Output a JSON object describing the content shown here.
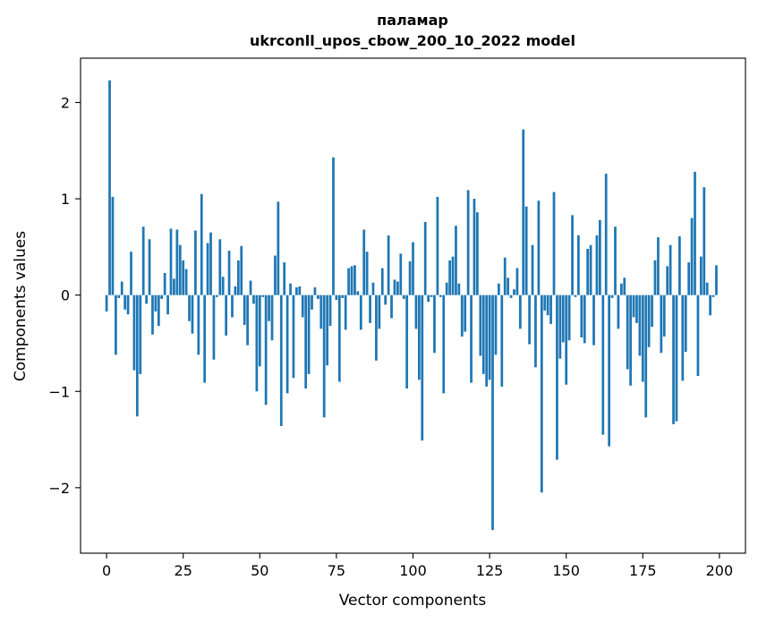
{
  "chart_data": {
    "type": "bar",
    "title": "паламар",
    "subtitle": "ukrconll_upos_cbow_200_10_2022 model",
    "xlabel": "Vector components",
    "ylabel": "Components values",
    "xlim": [
      -8.5,
      208.5
    ],
    "ylim": [
      -2.68,
      2.46
    ],
    "xticks": [
      0,
      25,
      50,
      75,
      100,
      125,
      150,
      175,
      200
    ],
    "yticks": [
      2,
      1,
      0,
      -1,
      -2
    ],
    "ytick_labels": [
      "2",
      "1",
      "0",
      "−1",
      "−2"
    ],
    "grid": false,
    "legend": "none",
    "bar_color": "#1f77b4",
    "x": [
      0,
      1,
      2,
      3,
      4,
      5,
      6,
      7,
      8,
      9,
      10,
      11,
      12,
      13,
      14,
      15,
      16,
      17,
      18,
      19,
      20,
      21,
      22,
      23,
      24,
      25,
      26,
      27,
      28,
      29,
      30,
      31,
      32,
      33,
      34,
      35,
      36,
      37,
      38,
      39,
      40,
      41,
      42,
      43,
      44,
      45,
      46,
      47,
      48,
      49,
      50,
      51,
      52,
      53,
      54,
      55,
      56,
      57,
      58,
      59,
      60,
      61,
      62,
      63,
      64,
      65,
      66,
      67,
      68,
      69,
      70,
      71,
      72,
      73,
      74,
      75,
      76,
      77,
      78,
      79,
      80,
      81,
      82,
      83,
      84,
      85,
      86,
      87,
      88,
      89,
      90,
      91,
      92,
      93,
      94,
      95,
      96,
      97,
      98,
      99,
      100,
      101,
      102,
      103,
      104,
      105,
      106,
      107,
      108,
      109,
      110,
      111,
      112,
      113,
      114,
      115,
      116,
      117,
      118,
      119,
      120,
      121,
      122,
      123,
      124,
      125,
      126,
      127,
      128,
      129,
      130,
      131,
      132,
      133,
      134,
      135,
      136,
      137,
      138,
      139,
      140,
      141,
      142,
      143,
      144,
      145,
      146,
      147,
      148,
      149,
      150,
      151,
      152,
      153,
      154,
      155,
      156,
      157,
      158,
      159,
      160,
      161,
      162,
      163,
      164,
      165,
      166,
      167,
      168,
      169,
      170,
      171,
      172,
      173,
      174,
      175,
      176,
      177,
      178,
      179,
      180,
      181,
      182,
      183,
      184,
      185,
      186,
      187,
      188,
      189,
      190,
      191,
      192,
      193,
      194,
      195,
      196,
      197,
      198,
      199
    ],
    "values": [
      -0.17,
      2.23,
      1.02,
      -0.62,
      -0.03,
      0.14,
      -0.15,
      -0.2,
      0.45,
      -0.78,
      -1.26,
      -0.82,
      0.71,
      -0.09,
      0.58,
      -0.41,
      -0.17,
      -0.32,
      -0.04,
      0.23,
      -0.2,
      0.69,
      0.17,
      0.68,
      0.52,
      0.36,
      0.27,
      -0.27,
      -0.4,
      0.67,
      -0.62,
      1.05,
      -0.91,
      0.54,
      0.65,
      -0.67,
      -0.02,
      0.58,
      0.19,
      -0.42,
      0.46,
      -0.23,
      0.09,
      0.36,
      0.51,
      -0.31,
      -0.52,
      0.15,
      -0.09,
      -1.0,
      -0.74,
      -0.02,
      -1.14,
      -0.27,
      -0.47,
      0.41,
      0.97,
      -1.36,
      0.34,
      -1.02,
      0.12,
      -0.86,
      0.08,
      0.09,
      -0.23,
      -0.97,
      -0.82,
      -0.15,
      0.08,
      -0.04,
      -0.35,
      -1.27,
      -0.73,
      -0.32,
      1.43,
      -0.05,
      -0.9,
      -0.03,
      -0.36,
      0.28,
      0.3,
      0.31,
      0.04,
      -0.36,
      0.68,
      0.45,
      -0.29,
      0.13,
      -0.68,
      -0.35,
      0.28,
      -0.1,
      0.62,
      -0.24,
      0.16,
      0.14,
      0.43,
      -0.04,
      -0.97,
      0.35,
      0.55,
      -0.35,
      -0.88,
      -1.51,
      0.76,
      -0.07,
      -0.02,
      -0.6,
      1.02,
      -0.02,
      -1.02,
      0.13,
      0.36,
      0.4,
      0.72,
      0.12,
      -0.43,
      -0.38,
      1.09,
      -0.91,
      1.0,
      0.86,
      -0.63,
      -0.82,
      -0.95,
      -0.88,
      -2.44,
      -0.62,
      0.12,
      -0.95,
      0.39,
      0.18,
      -0.03,
      0.06,
      0.28,
      -0.35,
      1.72,
      0.92,
      -0.51,
      0.52,
      -0.75,
      0.98,
      -2.05,
      -0.16,
      -0.21,
      -0.3,
      1.07,
      -1.71,
      -0.66,
      -0.49,
      -0.93,
      -0.47,
      0.83,
      -0.02,
      0.62,
      -0.44,
      -0.5,
      0.48,
      0.52,
      -0.52,
      0.62,
      0.78,
      -1.45,
      1.26,
      -1.57,
      -0.03,
      0.71,
      -0.35,
      0.12,
      0.18,
      -0.77,
      -0.94,
      -0.23,
      -0.29,
      -0.63,
      -0.9,
      -1.27,
      -0.54,
      -0.33,
      0.36,
      0.6,
      -0.6,
      -0.43,
      0.3,
      0.52,
      -1.34,
      -1.31,
      0.61,
      -0.89,
      -0.59,
      0.34,
      0.8,
      1.28,
      -0.84,
      0.4,
      1.12,
      0.13,
      -0.21,
      -0.02,
      0.31
    ]
  }
}
